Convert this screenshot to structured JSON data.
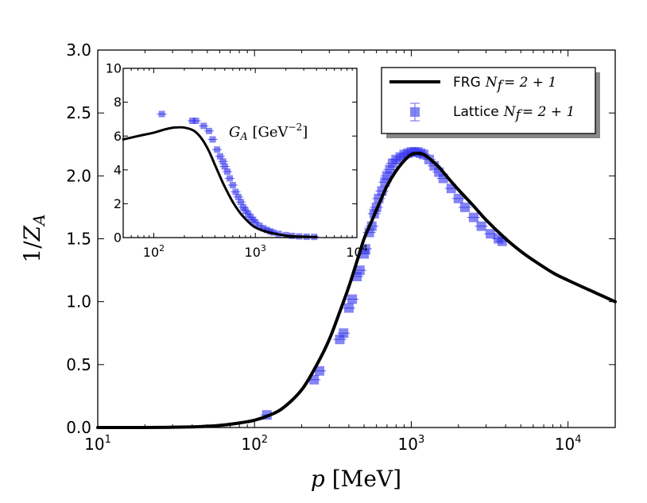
{
  "chart_data": [
    {
      "type": "line",
      "title": "",
      "xlabel": "p [MeV]",
      "ylabel": "1/Z_A",
      "xscale": "log",
      "xlim": [
        10,
        20000
      ],
      "ylim": [
        0,
        3.0
      ],
      "x_ticks": [
        {
          "base": "10",
          "exp": "1"
        },
        {
          "base": "10",
          "exp": "2"
        },
        {
          "base": "10",
          "exp": "3"
        },
        {
          "base": "10",
          "exp": "4"
        }
      ],
      "y_ticks": [
        "0.0",
        "0.5",
        "1.0",
        "1.5",
        "2.0",
        "2.5",
        "3.0"
      ],
      "legend_position": "top-right",
      "series": [
        {
          "name": "FRG N_f = 2+1",
          "kind": "line",
          "color": "#000000",
          "x": [
            10,
            20,
            30,
            40,
            50,
            60,
            70,
            80,
            90,
            100,
            120,
            150,
            200,
            250,
            300,
            350,
            400,
            450,
            500,
            550,
            600,
            650,
            700,
            800,
            900,
            1000,
            1100,
            1200,
            1300,
            1500,
            1700,
            2000,
            2500,
            3000,
            4000,
            5000,
            6000,
            8000,
            10000,
            15000,
            20000
          ],
          "values": [
            0.0,
            0.0,
            0.002,
            0.005,
            0.01,
            0.017,
            0.026,
            0.036,
            0.046,
            0.058,
            0.09,
            0.15,
            0.3,
            0.5,
            0.7,
            0.92,
            1.12,
            1.32,
            1.5,
            1.62,
            1.73,
            1.83,
            1.92,
            2.04,
            2.12,
            2.17,
            2.18,
            2.17,
            2.14,
            2.07,
            1.99,
            1.89,
            1.76,
            1.65,
            1.5,
            1.4,
            1.33,
            1.23,
            1.17,
            1.07,
            1.0
          ]
        },
        {
          "name": "Lattice N_f = 2+1",
          "kind": "scatter",
          "color": "#3333ee",
          "x": [
            120,
            240,
            260,
            350,
            370,
            400,
            420,
            450,
            470,
            500,
            510,
            540,
            560,
            580,
            600,
            620,
            650,
            680,
            700,
            730,
            760,
            800,
            850,
            900,
            950,
            1000,
            1050,
            1100,
            1150,
            1200,
            1300,
            1400,
            1500,
            1600,
            1800,
            2000,
            2200,
            2500,
            2800,
            3200,
            3600,
            3800
          ],
          "values": [
            0.1,
            0.38,
            0.45,
            0.7,
            0.75,
            0.95,
            1.02,
            1.2,
            1.25,
            1.38,
            1.42,
            1.55,
            1.6,
            1.7,
            1.75,
            1.82,
            1.88,
            1.95,
            2.0,
            2.05,
            2.1,
            2.13,
            2.15,
            2.17,
            2.18,
            2.19,
            2.19,
            2.19,
            2.18,
            2.17,
            2.13,
            2.08,
            2.03,
            1.98,
            1.9,
            1.82,
            1.75,
            1.67,
            1.6,
            1.54,
            1.5,
            1.48
          ]
        }
      ]
    },
    {
      "type": "line",
      "title": "",
      "annotation": "G_A [GeV^-2]",
      "xscale": "log",
      "xlim": [
        50,
        10000
      ],
      "ylim": [
        0,
        10
      ],
      "x_ticks": [
        {
          "base": "10",
          "exp": "2"
        },
        {
          "base": "10",
          "exp": "3"
        },
        {
          "base": "10",
          "exp": "4"
        }
      ],
      "y_ticks": [
        "0",
        "2",
        "4",
        "6",
        "8",
        "10"
      ],
      "series": [
        {
          "name": "FRG",
          "kind": "line",
          "color": "#000000",
          "x": [
            50,
            70,
            100,
            130,
            160,
            200,
            250,
            300,
            350,
            400,
            450,
            500,
            600,
            700,
            800,
            900,
            1000,
            1200,
            1500,
            2000,
            2500,
            3000,
            4000
          ],
          "values": [
            5.8,
            6.0,
            6.2,
            6.4,
            6.5,
            6.5,
            6.3,
            5.8,
            5.1,
            4.3,
            3.6,
            3.0,
            2.1,
            1.5,
            1.1,
            0.8,
            0.6,
            0.4,
            0.25,
            0.12,
            0.07,
            0.05,
            0.03
          ]
        },
        {
          "name": "Lattice",
          "kind": "scatter",
          "color": "#3333ee",
          "x": [
            120,
            240,
            260,
            310,
            350,
            380,
            420,
            450,
            480,
            500,
            530,
            560,
            600,
            640,
            680,
            720,
            760,
            800,
            850,
            900,
            950,
            1000,
            1100,
            1200,
            1300,
            1400,
            1500,
            1700,
            2000,
            2300,
            2700,
            3200,
            3800
          ],
          "values": [
            7.3,
            6.9,
            6.9,
            6.6,
            6.3,
            5.8,
            5.2,
            4.8,
            4.5,
            4.2,
            3.9,
            3.5,
            3.1,
            2.7,
            2.4,
            2.1,
            1.8,
            1.6,
            1.4,
            1.2,
            1.05,
            0.9,
            0.7,
            0.55,
            0.45,
            0.37,
            0.3,
            0.22,
            0.15,
            0.1,
            0.07,
            0.05,
            0.04
          ]
        }
      ]
    }
  ],
  "legend": {
    "entries": [
      {
        "label": "FRG",
        "math": "N_f = 2+1"
      },
      {
        "label": "Lattice",
        "math": "N_f = 2+1"
      }
    ]
  }
}
